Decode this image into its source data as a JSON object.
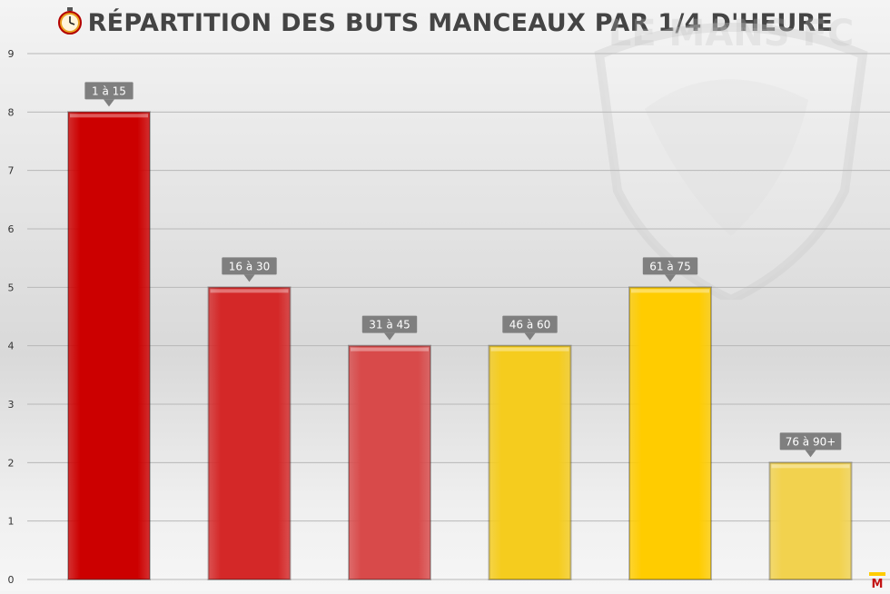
{
  "title": "RÉPARTITION DES BUTS MANCEAUX PAR 1/4 D'HEURE",
  "title_icon": "stopwatch-icon",
  "watermark_text": "LE MANS FC",
  "corner_logo_text": "M",
  "colors": {
    "dark_red": "#cc0000",
    "red": "#d42828",
    "light_red": "#d84a4a",
    "gold": "#f5cc1e",
    "yellow": "#ffcc00",
    "light_gold": "#f2d24e",
    "label_bg": "#7f7f7f",
    "grid": "#b8b8b8"
  },
  "chart_data": {
    "type": "bar",
    "title": "RÉPARTITION DES BUTS MANCEAUX PAR 1/4 D'HEURE",
    "categories": [
      "1 à 15",
      "16 à 30",
      "31 à 45",
      "46 à 60",
      "61 à 75",
      "76 à 90+"
    ],
    "values": [
      8,
      5,
      4,
      4,
      5,
      2
    ],
    "bar_colors": [
      "#cc0000",
      "#d42828",
      "#d84a4a",
      "#f5cc1e",
      "#ffcc00",
      "#f2d24e"
    ],
    "ylim": [
      0,
      9
    ],
    "yticks": [
      0,
      1,
      2,
      3,
      4,
      5,
      6,
      7,
      8,
      9
    ],
    "grid": true,
    "xlabel": "",
    "ylabel": ""
  }
}
